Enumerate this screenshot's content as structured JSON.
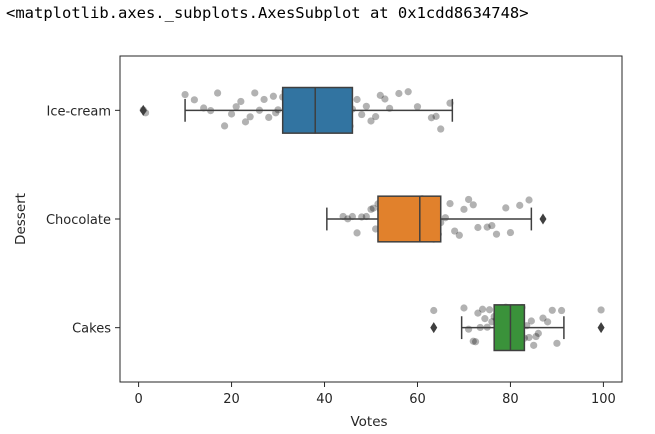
{
  "output_repr": "<matplotlib.axes._subplots.AxesSubplot at 0x1cdd8634748>",
  "chart_data": {
    "type": "boxplot",
    "orientation": "horizontal",
    "xlabel": "Votes",
    "ylabel": "Dessert",
    "xlim": [
      -4,
      104
    ],
    "xticks": [
      0,
      20,
      40,
      60,
      80,
      100
    ],
    "grid": false,
    "legend": "none",
    "categories": [
      "Ice-cream",
      "Chocolate",
      "Cakes"
    ],
    "colors": [
      "#3274a1",
      "#e1812c",
      "#3a923a"
    ],
    "boxes": [
      {
        "category": "Ice-cream",
        "whisker_low": 10,
        "q1": 31,
        "median": 38,
        "q3": 46,
        "whisker_high": 67.5,
        "outliers": [
          1
        ]
      },
      {
        "category": "Chocolate",
        "whisker_low": 40.5,
        "q1": 51.5,
        "median": 60.5,
        "q3": 65,
        "whisker_high": 84.5,
        "outliers": [
          87
        ]
      },
      {
        "category": "Cakes",
        "whisker_low": 69.5,
        "q1": 76.5,
        "median": 80,
        "q3": 83,
        "whisker_high": 91.5,
        "outliers": [
          63.5,
          99.5
        ]
      }
    ],
    "strip_points": [
      {
        "category": "Ice-cream",
        "values": [
          1,
          1.5,
          10,
          12,
          14,
          15.5,
          17,
          18.5,
          20,
          21,
          22,
          23,
          24,
          25,
          26,
          27,
          28,
          29,
          29.5,
          30,
          31,
          31.5,
          32,
          33,
          33.5,
          34,
          34.5,
          35,
          35.5,
          36,
          36.5,
          37,
          37.5,
          38,
          38.5,
          39,
          39.5,
          40,
          40.5,
          41,
          41.5,
          42,
          43,
          44,
          45,
          45.5,
          46,
          47,
          48,
          49,
          50,
          51,
          52,
          53,
          54,
          56,
          58,
          60,
          63,
          64,
          65,
          67
        ]
      },
      {
        "category": "Chocolate",
        "values": [
          44,
          45,
          46,
          47,
          48,
          49,
          50,
          50.5,
          51,
          51.5,
          52,
          52.5,
          53,
          53.5,
          54,
          54.5,
          55,
          55.5,
          56,
          56.5,
          57,
          57.5,
          58,
          58.5,
          59,
          59.5,
          60,
          60.5,
          61,
          61.5,
          62,
          62.5,
          63,
          63.5,
          64,
          64.5,
          65,
          66,
          67,
          68,
          69,
          70,
          71,
          72,
          73,
          75,
          76,
          77,
          79,
          80,
          82,
          84
        ]
      },
      {
        "category": "Cakes",
        "values": [
          63.5,
          70,
          71,
          72,
          72.5,
          73,
          73.5,
          74,
          74.5,
          75,
          75.5,
          76,
          76.5,
          77,
          77.5,
          78,
          78.5,
          79,
          79.5,
          80,
          80.5,
          81,
          81.5,
          82,
          82.5,
          83,
          83.5,
          84,
          84.5,
          85,
          85.5,
          86,
          87,
          88,
          89,
          90,
          91,
          99.5
        ]
      }
    ]
  }
}
